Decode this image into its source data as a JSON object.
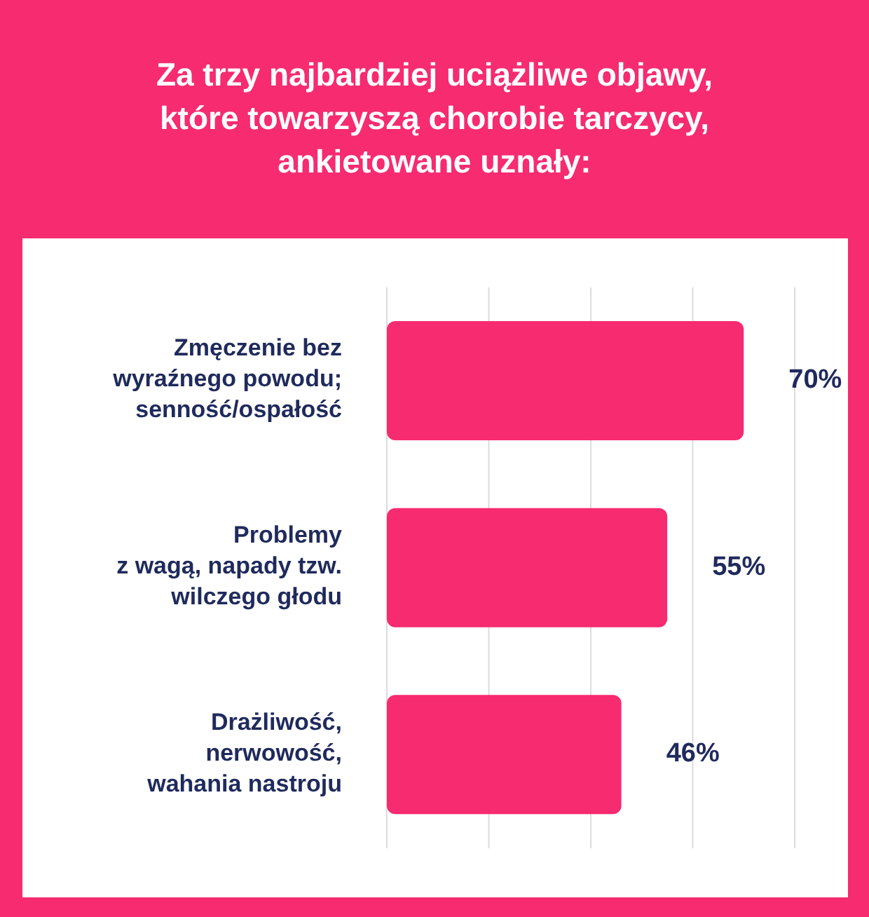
{
  "chart_data": {
    "type": "bar",
    "orientation": "horizontal",
    "title": "Za trzy najbardziej uciążliwe objawy,\nktóre towarzyszą chorobie tarczycy,\nankietowane uznały:",
    "categories": [
      "Zmęczenie bez\nwyraźnego powodu;\nsenność/ospałość",
      "Problemy\nz wagą, napady tzw.\nwilczego głodu",
      "Drażliwość,\nnerwowość,\nwahania nastroju"
    ],
    "values": [
      70,
      55,
      46
    ],
    "color": "#f72b6f",
    "value_labels": [
      "70%",
      "55%",
      "46%"
    ],
    "grid": "x",
    "tick_labels": "y"
  }
}
